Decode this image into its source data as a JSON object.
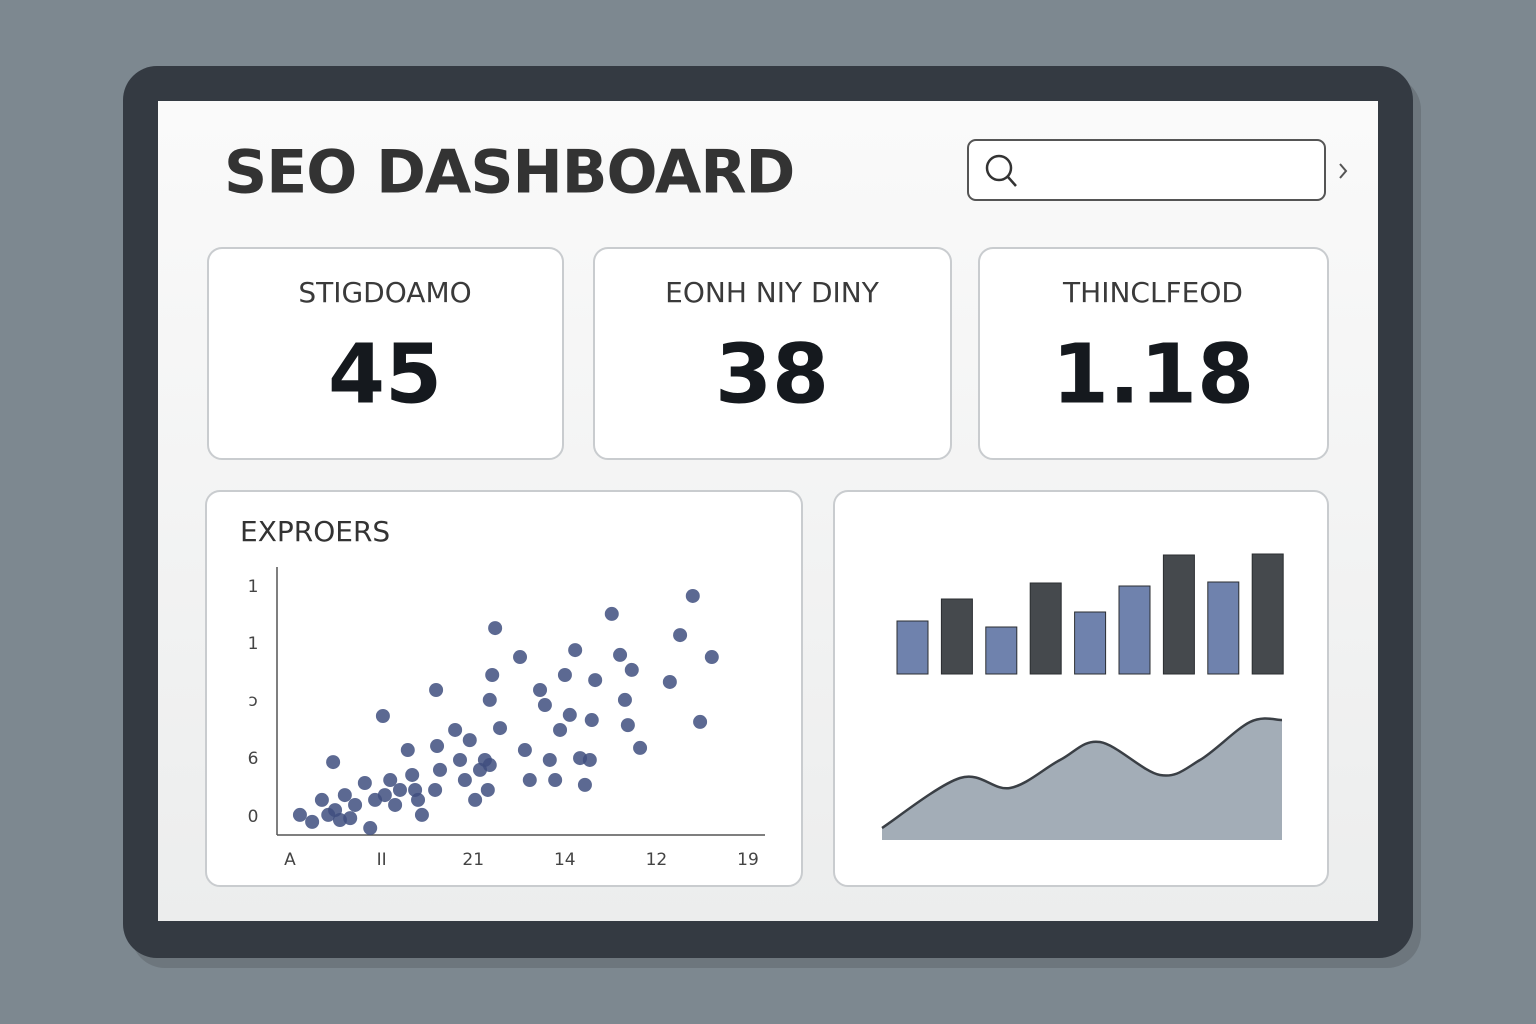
{
  "header": {
    "title": "SEO DASHBOARD"
  },
  "cards": [
    {
      "label": "STIGDOAMO",
      "value": 45
    },
    {
      "label": "EONH NIY DINY",
      "value": 38
    },
    {
      "label": "THINCLFEOD",
      "value": 1.18
    }
  ],
  "chart_data": [
    {
      "type": "scatter",
      "title": "EXPROERS",
      "color": "#3f4f7f",
      "xlim": [
        0,
        100
      ],
      "ylim": [
        0,
        100
      ],
      "xtick_labels": [
        "A",
        "II",
        "21",
        "14",
        "12",
        "19"
      ],
      "ytick_labels": [
        "1",
        "1",
        "ↄ",
        "6",
        "0"
      ],
      "x": [
        4.7,
        7.2,
        9.2,
        10.5,
        11.9,
        12.9,
        15.0,
        13.9,
        16.0,
        11.5,
        18.0,
        19.1,
        20.1,
        22.1,
        23.2,
        24.2,
        25.2,
        26.8,
        27.7,
        28.9,
        29.7,
        28.3,
        32.4,
        33.4,
        32.8,
        36.5,
        37.5,
        38.5,
        39.5,
        40.6,
        41.6,
        42.6,
        43.2,
        43.6,
        32.6,
        21.7,
        44.7,
        49.8,
        44.1,
        45.7,
        50.8,
        51.8,
        53.9,
        54.9,
        55.9,
        57.0,
        58.0,
        59.0,
        60.0,
        61.1,
        62.1,
        63.1,
        64.1,
        65.2,
        64.5,
        68.6,
        70.3,
        71.3,
        71.9,
        72.7,
        74.4,
        80.5,
        82.6,
        85.2,
        86.7,
        89.1,
        43.6
      ],
      "values": [
        7.5,
        4.9,
        13.1,
        7.5,
        9.3,
        5.6,
        6.3,
        14.9,
        11.2,
        27.2,
        19.4,
        2.6,
        13.1,
        14.9,
        20.5,
        11.2,
        16.8,
        31.7,
        22.4,
        13.1,
        7.5,
        16.8,
        16.8,
        24.3,
        33.2,
        39.2,
        28.0,
        20.5,
        35.4,
        13.1,
        24.3,
        28.0,
        16.8,
        26.1,
        54.1,
        44.4,
        77.2,
        66.4,
        59.7,
        39.9,
        31.7,
        20.5,
        54.1,
        48.5,
        28.0,
        20.5,
        39.2,
        59.7,
        44.8,
        69.0,
        28.7,
        18.7,
        28.0,
        57.8,
        42.9,
        82.5,
        67.2,
        50.4,
        41.0,
        61.6,
        32.5,
        57.1,
        74.6,
        89.2,
        42.2,
        66.4,
        50.4
      ]
    },
    {
      "type": "bar",
      "ylim": [
        0,
        130
      ],
      "values": [
        53,
        75,
        47,
        91,
        62,
        88,
        119,
        92,
        120
      ],
      "colors": [
        "#6f82ad",
        "#45494d",
        "#6f82ad",
        "#45494d",
        "#6f82ad",
        "#6f82ad",
        "#45494d",
        "#6f82ad",
        "#45494d"
      ]
    },
    {
      "type": "area",
      "color": "#a3adb7",
      "line_color": "#3a3f45",
      "xlim": [
        0,
        100
      ],
      "ylim": [
        0,
        130
      ],
      "x": [
        0,
        19.5,
        32,
        44.5,
        54.5,
        69.5,
        79.5,
        92,
        100
      ],
      "values": [
        12,
        62,
        52,
        80,
        98,
        65,
        80,
        118,
        120
      ]
    }
  ]
}
